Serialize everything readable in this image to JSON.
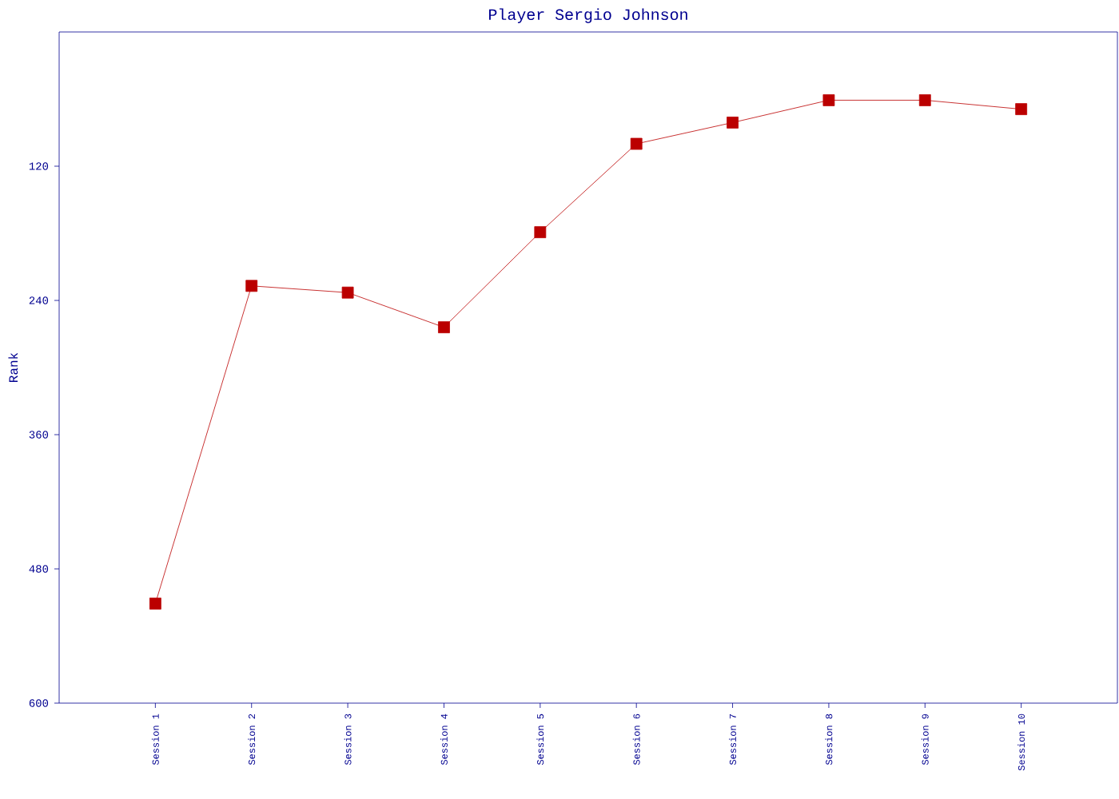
{
  "chart_data": {
    "type": "line",
    "title": "Player Sergio Johnson",
    "ylabel": "Rank",
    "categories": [
      "Session 1",
      "Session 2",
      "Session 3",
      "Session 4",
      "Session 5",
      "Session 6",
      "Session 7",
      "Session 8",
      "Session 9",
      "Session 10"
    ],
    "series": [
      {
        "color": "#bb0000",
        "values": [
          511,
          227,
          233,
          264,
          179,
          100,
          81,
          61,
          61,
          69
        ]
      }
    ],
    "ylim": [
      600,
      0
    ],
    "yticks": [
      120,
      240,
      360,
      480,
      600
    ],
    "marker": "square",
    "line_style": "solid"
  }
}
